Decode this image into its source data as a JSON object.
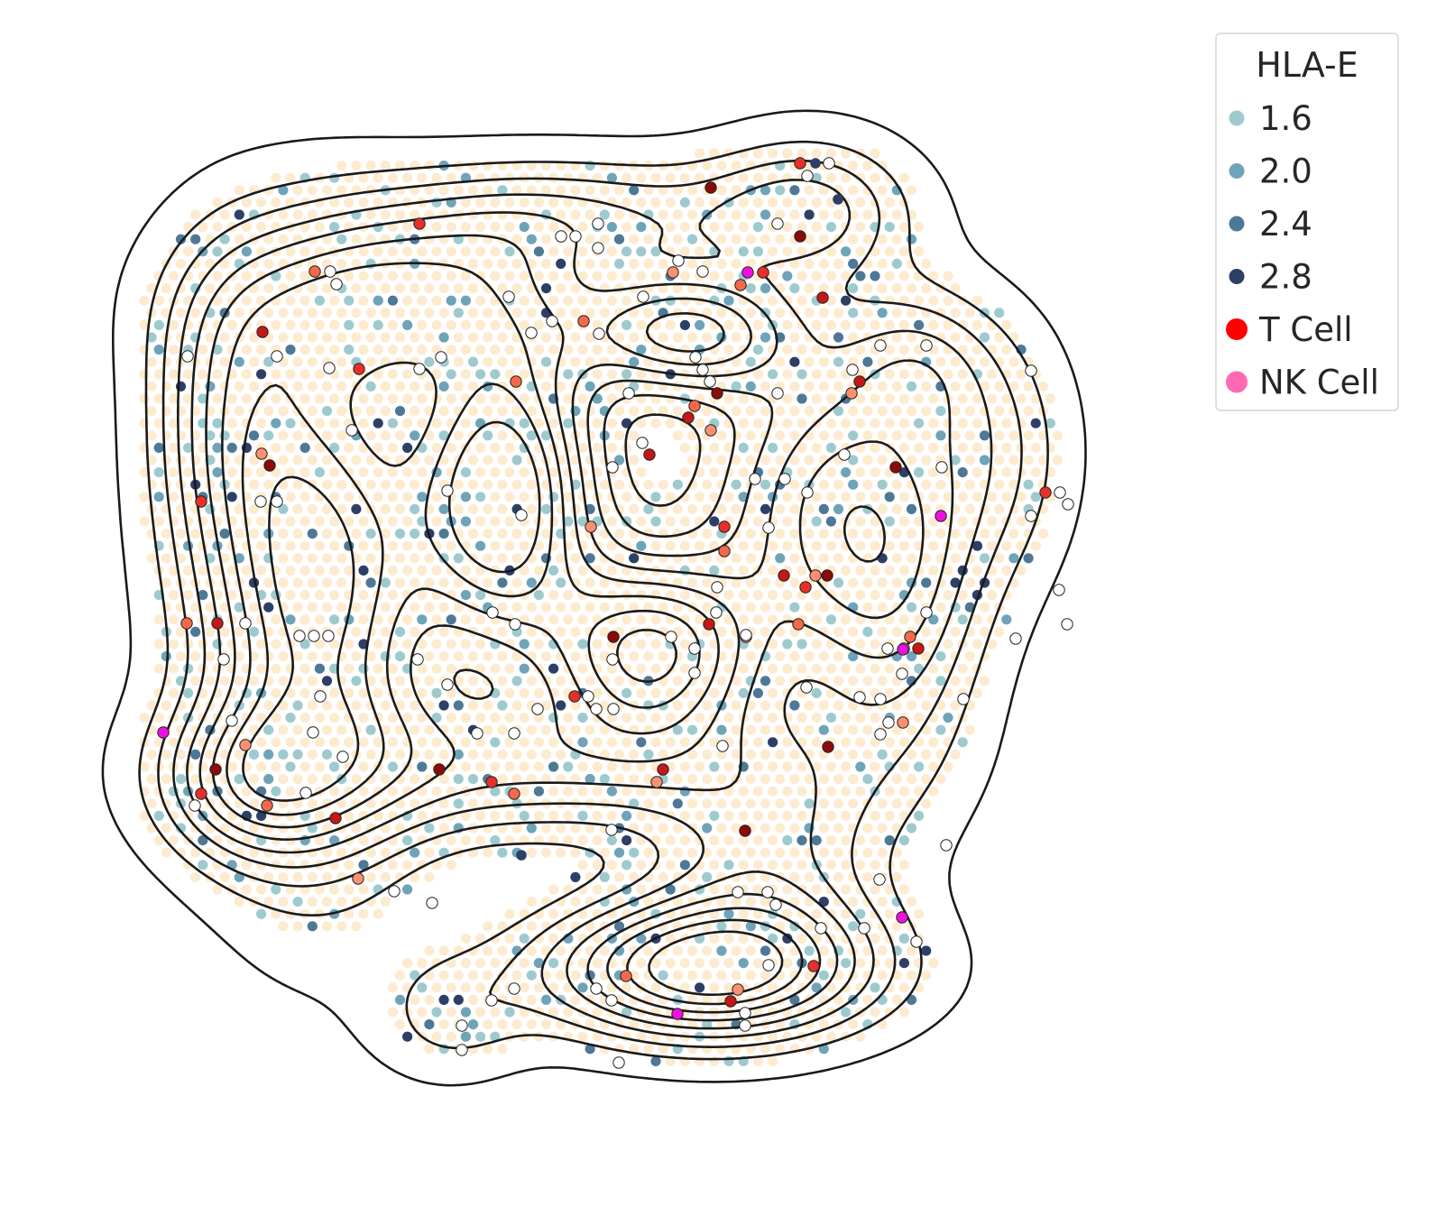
{
  "chart_data": {
    "type": "scatter",
    "title": "",
    "xlabel": "",
    "ylabel": "",
    "axes_visible": false,
    "grid": false,
    "legend": {
      "title": "HLA-E",
      "placement": "top-right-outside",
      "entries": [
        {
          "label": "1.6",
          "color": "#9fcacd",
          "size": "small"
        },
        {
          "label": "2.0",
          "color": "#6fa3b8",
          "size": "small"
        },
        {
          "label": "2.4",
          "color": "#4f7896",
          "size": "small"
        },
        {
          "label": "2.8",
          "color": "#2e3f66",
          "size": "small"
        },
        {
          "label": "T Cell",
          "color": "#ff0000",
          "size": "large"
        },
        {
          "label": "NK Cell",
          "color": "#ff69b4",
          "size": "large"
        }
      ]
    },
    "background_spots": {
      "color": "#fdebd0",
      "description_value": "tissue spots"
    },
    "hla_e_colors": {
      "1.6": "#9fcacd",
      "2.0": "#6fa3b8",
      "2.4": "#4f7896",
      "2.8": "#2e3f66"
    },
    "density_contours": {
      "levels": 9,
      "color": "#1a1a1a"
    },
    "t_cell_points": [
      [
        465,
        248
      ],
      [
        349,
        301
      ],
      [
        291,
        368
      ],
      [
        290,
        503
      ],
      [
        299,
        516
      ],
      [
        223,
        556
      ],
      [
        207,
        691
      ],
      [
        241,
        691
      ],
      [
        272,
        826
      ],
      [
        239,
        853
      ],
      [
        223,
        880
      ],
      [
        296,
        893
      ],
      [
        372,
        907
      ],
      [
        397,
        974
      ],
      [
        487,
        853
      ],
      [
        545,
        867
      ],
      [
        570,
        880
      ],
      [
        735,
        853
      ],
      [
        728,
        867
      ],
      [
        826,
        921
      ],
      [
        398,
        409
      ],
      [
        572,
        423
      ],
      [
        720,
        504
      ],
      [
        655,
        584
      ],
      [
        680,
        706
      ],
      [
        637,
        772
      ],
      [
        770,
        450
      ],
      [
        763,
        463
      ],
      [
        788,
        477
      ],
      [
        795,
        436
      ],
      [
        803,
        584
      ],
      [
        803,
        611
      ],
      [
        869,
        638
      ],
      [
        904,
        638
      ],
      [
        917,
        638
      ],
      [
        893,
        651
      ],
      [
        885,
        692
      ],
      [
        786,
        692
      ],
      [
        827,
        706
      ],
      [
        887,
        262
      ],
      [
        846,
        302
      ],
      [
        821,
        316
      ],
      [
        912,
        330
      ],
      [
        746,
        302
      ],
      [
        788,
        208
      ],
      [
        887,
        181
      ],
      [
        647,
        356
      ],
      [
        953,
        423
      ],
      [
        944,
        436
      ],
      [
        993,
        518
      ],
      [
        1159,
        546
      ],
      [
        1009,
        706
      ],
      [
        1018,
        719
      ],
      [
        1001,
        801
      ],
      [
        918,
        828
      ],
      [
        902,
        1071
      ],
      [
        694,
        1082
      ],
      [
        810,
        1110
      ],
      [
        818,
        1097
      ]
    ],
    "nk_cell_points": [
      [
        829,
        302
      ],
      [
        1043,
        572
      ],
      [
        1001,
        720
      ],
      [
        181,
        812
      ],
      [
        1000,
        1017
      ],
      [
        751,
        1124
      ]
    ],
    "unlabeled_points": [
      [
        663,
        248
      ],
      [
        622,
        262
      ],
      [
        638,
        262
      ],
      [
        663,
        275
      ],
      [
        366,
        301
      ],
      [
        373,
        315
      ],
      [
        564,
        329
      ],
      [
        612,
        356
      ],
      [
        589,
        369
      ],
      [
        465,
        409
      ],
      [
        489,
        396
      ],
      [
        365,
        408
      ],
      [
        307,
        395
      ],
      [
        208,
        395
      ],
      [
        390,
        477
      ],
      [
        289,
        556
      ],
      [
        307,
        556
      ],
      [
        272,
        691
      ],
      [
        248,
        731
      ],
      [
        332,
        705
      ],
      [
        348,
        705
      ],
      [
        364,
        705
      ],
      [
        355,
        772
      ],
      [
        463,
        731
      ],
      [
        496,
        759
      ],
      [
        347,
        812
      ],
      [
        380,
        839
      ],
      [
        257,
        799
      ],
      [
        216,
        893
      ],
      [
        339,
        879
      ],
      [
        437,
        988
      ],
      [
        479,
        1001
      ],
      [
        545,
        1109
      ],
      [
        570,
        1096
      ],
      [
        512,
        1137
      ],
      [
        512,
        1164
      ],
      [
        686,
        1178
      ],
      [
        678,
        1109
      ],
      [
        661,
        1096
      ],
      [
        570,
        813
      ],
      [
        529,
        813
      ],
      [
        596,
        786
      ],
      [
        652,
        772
      ],
      [
        661,
        786
      ],
      [
        680,
        786
      ],
      [
        679,
        731
      ],
      [
        744,
        706
      ],
      [
        770,
        719
      ],
      [
        795,
        651
      ],
      [
        770,
        746
      ],
      [
        794,
        679
      ],
      [
        827,
        704
      ],
      [
        713,
        329
      ],
      [
        697,
        436
      ],
      [
        664,
        370
      ],
      [
        679,
        518
      ],
      [
        712,
        491
      ],
      [
        752,
        289
      ],
      [
        779,
        301
      ],
      [
        779,
        410
      ],
      [
        787,
        423
      ],
      [
        771,
        396
      ],
      [
        862,
        436
      ],
      [
        837,
        531
      ],
      [
        852,
        585
      ],
      [
        870,
        531
      ],
      [
        895,
        546
      ],
      [
        862,
        248
      ],
      [
        895,
        195
      ],
      [
        919,
        181
      ],
      [
        945,
        410
      ],
      [
        1027,
        383
      ],
      [
        976,
        383
      ],
      [
        936,
        504
      ],
      [
        1044,
        518
      ],
      [
        1143,
        572
      ],
      [
        1143,
        411
      ],
      [
        1175,
        546
      ],
      [
        1184,
        559
      ],
      [
        1174,
        654
      ],
      [
        1183,
        692
      ],
      [
        1126,
        708
      ],
      [
        1068,
        775
      ],
      [
        1027,
        679
      ],
      [
        984,
        719
      ],
      [
        976,
        775
      ],
      [
        985,
        801
      ],
      [
        953,
        773
      ],
      [
        976,
        814
      ],
      [
        1000,
        747
      ],
      [
        1002,
        719
      ],
      [
        1049,
        937
      ],
      [
        975,
        975
      ],
      [
        958,
        1029
      ],
      [
        1016,
        1044
      ],
      [
        910,
        1029
      ],
      [
        818,
        989
      ],
      [
        851,
        989
      ],
      [
        860,
        1003
      ],
      [
        852,
        1070
      ],
      [
        826,
        1123
      ],
      [
        826,
        1137
      ],
      [
        801,
        827
      ],
      [
        894,
        762
      ],
      [
        496,
        544
      ],
      [
        578,
        571
      ],
      [
        571,
        692
      ],
      [
        546,
        679
      ],
      [
        678,
        920
      ]
    ],
    "dark_navy_points": [
      [
        904,
        181
      ],
      [
        578,
        948
      ],
      [
        929,
        221
      ]
    ]
  }
}
